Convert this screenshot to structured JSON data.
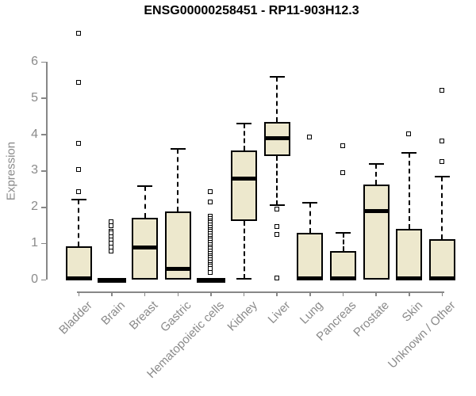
{
  "title": "ENSG00000258451 - RP11-903H12.3",
  "colors": {
    "box_fill": "#EDE8CD",
    "box_border": "#000000",
    "median": "#000000",
    "axis": "#878787",
    "tick_label": "#8a8a8a",
    "title": "#000000",
    "background": "#ffffff"
  },
  "chart_data": {
    "type": "boxplot",
    "title": "ENSG00000258451 - RP11-903H12.3",
    "xlabel": "",
    "ylabel": "Expression",
    "ylim": [
      0,
      6
    ],
    "yticks": [
      0,
      1,
      2,
      3,
      4,
      5,
      6
    ],
    "grid": "off",
    "legend": "none",
    "categories": [
      "Bladder",
      "Brain",
      "Breast",
      "Gastric",
      "Hematopoietic cells",
      "Kidney",
      "Liver",
      "Lung",
      "Pancreas",
      "Prostate",
      "Skin",
      "Unknown / Other"
    ],
    "boxes": [
      {
        "category": "Bladder",
        "whisker_low": 0,
        "q1": 0,
        "median": 0.05,
        "q3": 0.92,
        "whisker_high": 2.22,
        "outliers": [
          6.78,
          5.42,
          3.75,
          3.02,
          2.43
        ]
      },
      {
        "category": "Brain",
        "whisker_low": 0,
        "q1": 0,
        "median": 0.02,
        "q3": 0,
        "whisker_high": 0,
        "outliers": [
          1.6,
          1.48,
          1.33,
          1.28,
          1.18,
          1.09,
          1.01,
          0.9,
          0.79
        ]
      },
      {
        "category": "Breast",
        "whisker_low": 0,
        "q1": 0.02,
        "median": 0.89,
        "q3": 1.72,
        "whisker_high": 2.58,
        "outliers": []
      },
      {
        "category": "Gastric",
        "whisker_low": 0,
        "q1": 0.02,
        "median": 0.3,
        "q3": 1.88,
        "whisker_high": 3.61,
        "outliers": []
      },
      {
        "category": "Hematopoietic cells",
        "whisker_low": 0,
        "q1": 0,
        "median": 0.02,
        "q3": 0,
        "whisker_high": 0,
        "outliers": [
          2.42,
          2.13,
          1.75,
          1.68,
          1.62,
          1.56,
          1.5,
          1.44,
          1.38,
          1.32,
          1.26,
          1.2,
          1.14,
          1.08,
          1.02,
          0.96,
          0.9,
          0.84,
          0.78,
          0.72,
          0.66,
          0.6,
          0.54,
          0.48,
          0.42,
          0.36,
          0.3,
          0.19
        ]
      },
      {
        "category": "Kidney",
        "whisker_low": 0.03,
        "q1": 1.62,
        "median": 2.8,
        "q3": 3.56,
        "whisker_high": 4.31,
        "outliers": []
      },
      {
        "category": "Liver",
        "whisker_low": 2.07,
        "q1": 3.42,
        "median": 3.91,
        "q3": 4.36,
        "whisker_high": 5.6,
        "outliers": [
          1.93,
          1.46,
          1.24,
          0.04
        ]
      },
      {
        "category": "Lung",
        "whisker_low": 0,
        "q1": 0,
        "median": 0.05,
        "q3": 1.3,
        "whisker_high": 2.13,
        "outliers": [
          3.92
        ]
      },
      {
        "category": "Pancreas",
        "whisker_low": 0,
        "q1": 0,
        "median": 0.05,
        "q3": 0.79,
        "whisker_high": 1.3,
        "outliers": [
          3.68,
          2.94
        ]
      },
      {
        "category": "Prostate",
        "whisker_low": 0,
        "q1": 0.02,
        "median": 1.89,
        "q3": 2.62,
        "whisker_high": 3.2,
        "outliers": []
      },
      {
        "category": "Skin",
        "whisker_low": 0,
        "q1": 0,
        "median": 0.04,
        "q3": 1.41,
        "whisker_high": 3.49,
        "outliers": [
          4.02
        ]
      },
      {
        "category": "Unknown / Other",
        "whisker_low": 0,
        "q1": 0,
        "median": 0.04,
        "q3": 1.13,
        "whisker_high": 2.84,
        "outliers": [
          5.22,
          3.82,
          3.24
        ]
      }
    ]
  }
}
